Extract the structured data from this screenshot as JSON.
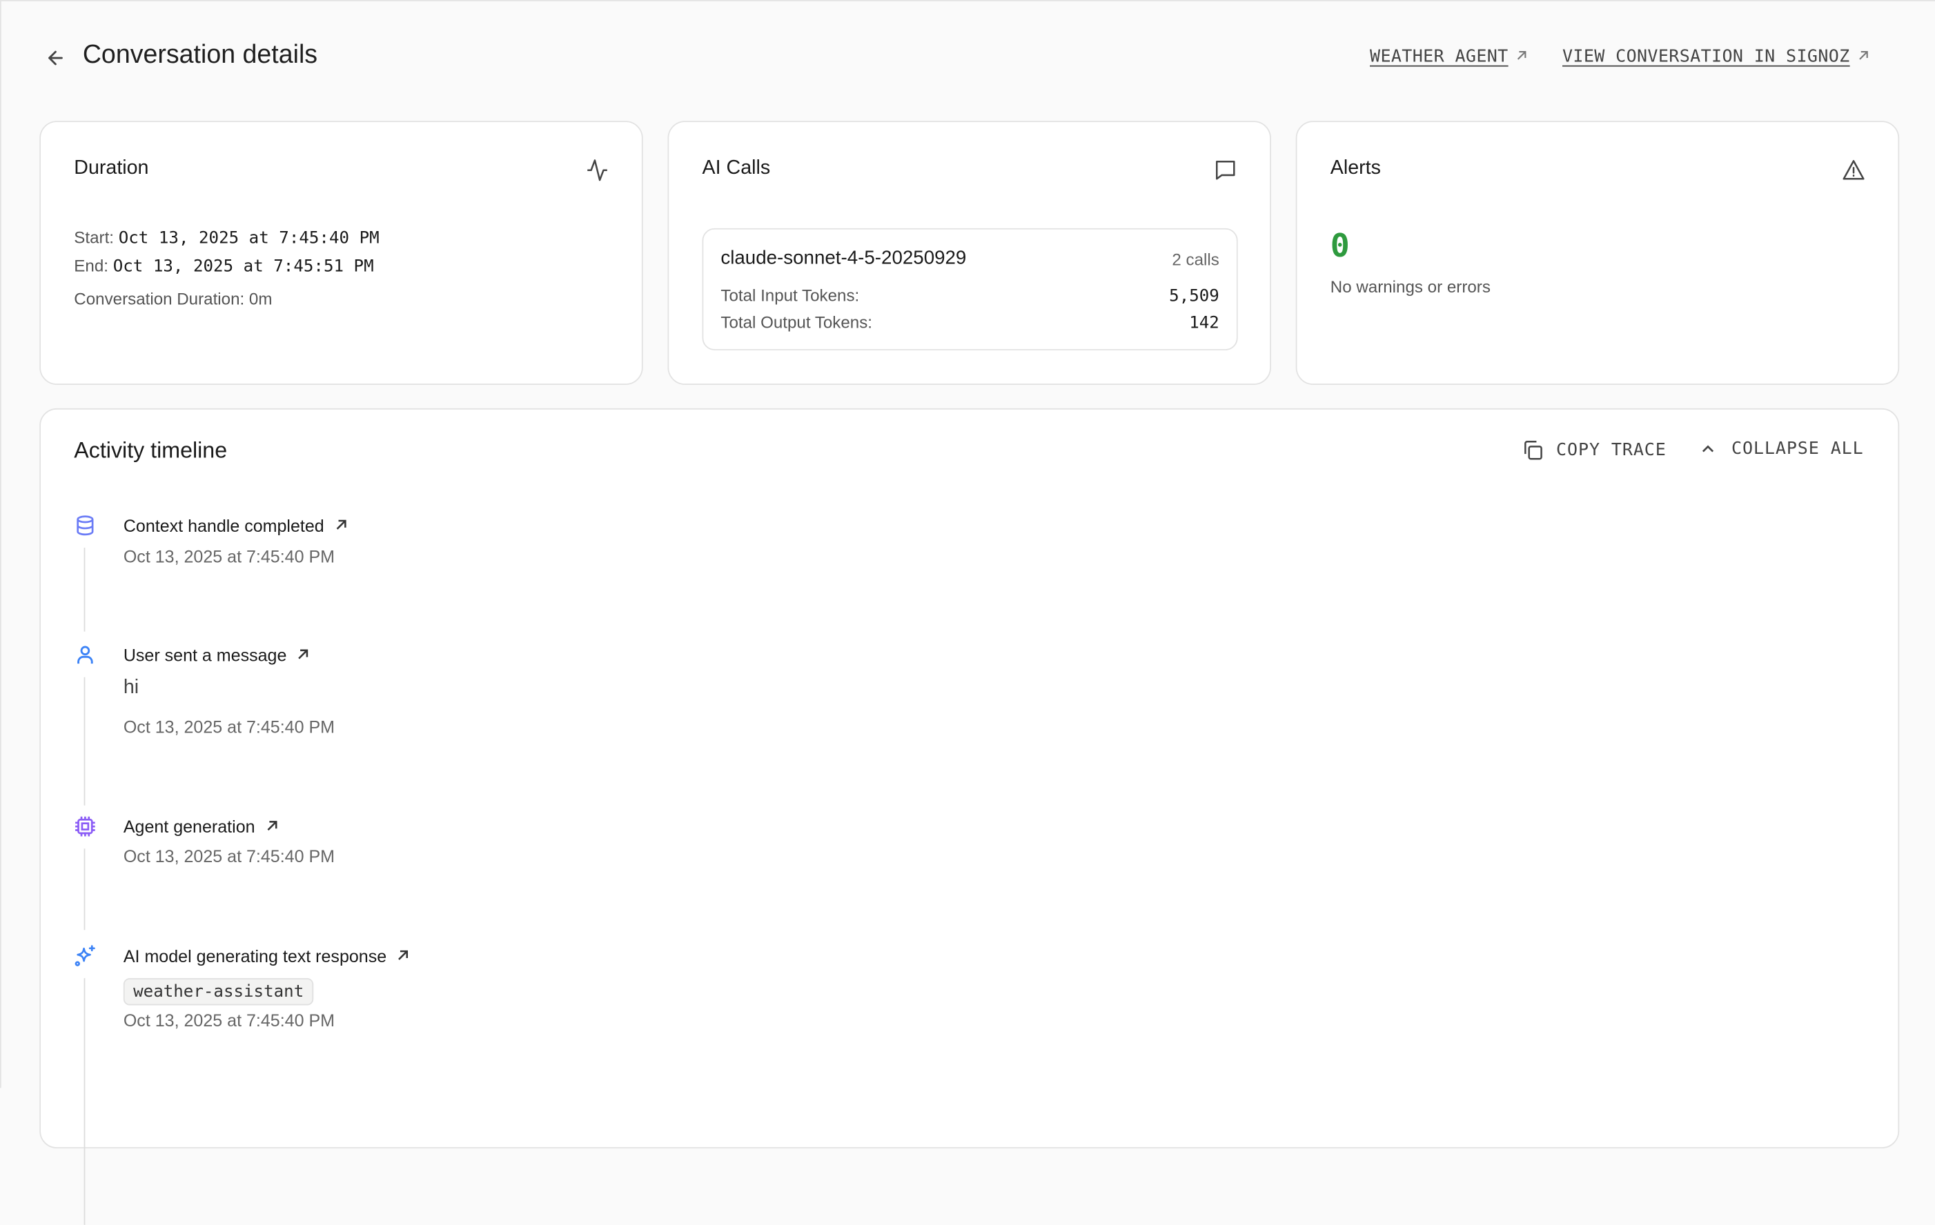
{
  "header": {
    "title": "Conversation details",
    "links": [
      {
        "label": "WEATHER AGENT"
      },
      {
        "label": "VIEW CONVERSATION IN SIGNOZ"
      }
    ]
  },
  "duration_card": {
    "title": "Duration",
    "icon": "activity-icon",
    "start_label": "Start:",
    "start_value": "Oct 13, 2025 at 7:45:40 PM",
    "end_label": "End:",
    "end_value": "Oct 13, 2025 at 7:45:51 PM",
    "duration_text": "Conversation Duration: 0m"
  },
  "ai_calls_card": {
    "title": "AI Calls",
    "icon": "message-square-icon",
    "models": [
      {
        "name": "claude-sonnet-4-5-20250929",
        "calls": "2 calls",
        "input_label": "Total Input Tokens:",
        "input_tokens": "5,509",
        "output_label": "Total Output Tokens:",
        "output_tokens": "142"
      }
    ]
  },
  "alerts_card": {
    "title": "Alerts",
    "icon": "alert-triangle-icon",
    "count": "0",
    "message": "No warnings or errors",
    "count_color": "#2e9a3e"
  },
  "timeline": {
    "title": "Activity timeline",
    "copy_label": "COPY TRACE",
    "collapse_label": "COLLAPSE ALL",
    "items": [
      {
        "icon": "database-icon",
        "title": "Context handle completed",
        "date": "Oct 13, 2025 at 7:45:40 PM",
        "color": "#6b7cf6"
      },
      {
        "icon": "user-icon",
        "title": "User sent a message",
        "message": "hi",
        "date": "Oct 13, 2025 at 7:45:40 PM",
        "color": "#3b82f6"
      },
      {
        "icon": "cpu-icon",
        "title": "Agent generation",
        "date": "Oct 13, 2025 at 7:45:40 PM",
        "color": "#8b5cf6"
      },
      {
        "icon": "sparkles-icon",
        "title": "AI model generating text response",
        "tag": "weather-assistant",
        "date": "Oct 13, 2025 at 7:45:40 PM",
        "color": "#3b82f6"
      }
    ]
  }
}
